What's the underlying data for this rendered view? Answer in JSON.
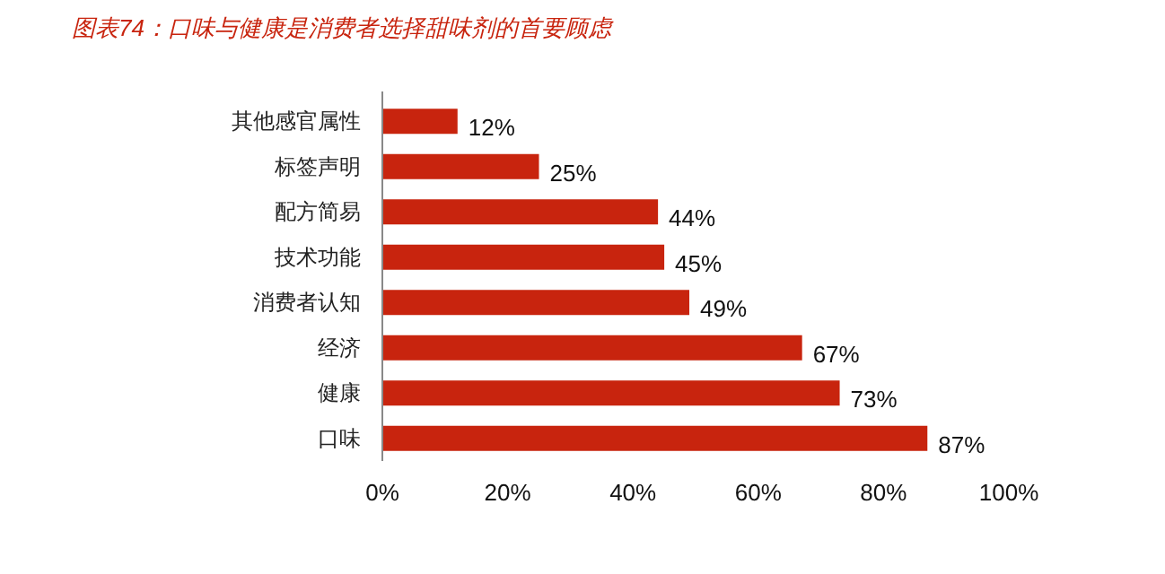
{
  "chart_data": {
    "type": "bar",
    "orientation": "horizontal",
    "title": "图表74：口味与健康是消费者选择甜味剂的首要顾虑",
    "categories": [
      "其他感官属性",
      "标签声明",
      "配方简易",
      "技术功能",
      "消费者认知",
      "经济",
      "健康",
      "口味"
    ],
    "values": [
      12,
      25,
      44,
      45,
      49,
      67,
      73,
      87
    ],
    "value_labels": [
      "12%",
      "25%",
      "44%",
      "45%",
      "49%",
      "67%",
      "73%",
      "87%"
    ],
    "color": "#c8240e",
    "xlim": [
      0,
      100
    ],
    "xticks": [
      {
        "value": 0,
        "label": "0%"
      },
      {
        "value": 20,
        "label": "20%"
      },
      {
        "value": 40,
        "label": "40%"
      },
      {
        "value": 60,
        "label": "60%"
      },
      {
        "value": 80,
        "label": "80%"
      },
      {
        "value": 100,
        "label": "100%"
      }
    ],
    "grid": false
  }
}
